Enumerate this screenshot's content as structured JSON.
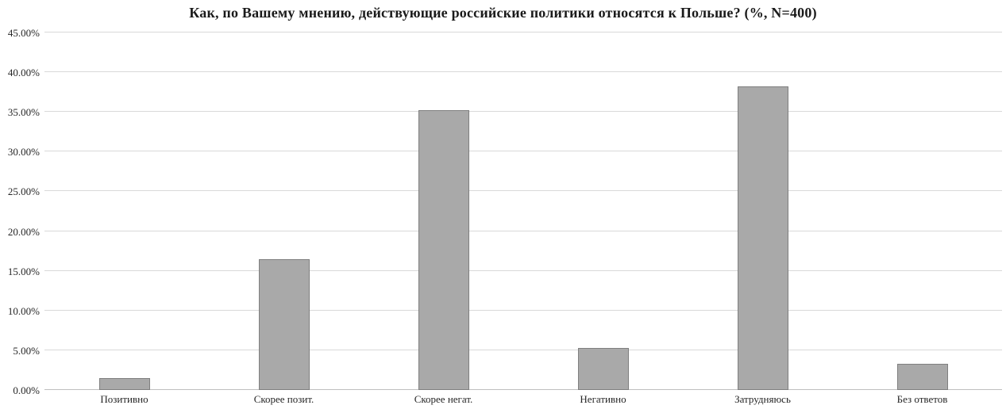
{
  "chart_data": {
    "type": "bar",
    "title": "Как, по Вашему мнению, действующие российские политики относятся к Польше? (%, N=400)",
    "categories": [
      "Позитивно",
      "Скорее позит.",
      "Скорее негат.",
      "Негативно",
      "Затрудняюсь",
      "Без ответов"
    ],
    "values": [
      1.5,
      16.5,
      35.25,
      5.25,
      38.25,
      3.25
    ],
    "ylabel": "",
    "xlabel": "",
    "ylim": [
      0,
      45
    ],
    "ytick_step": 5,
    "ytick_labels": [
      "0.00%",
      "5.00%",
      "10.00%",
      "15.00%",
      "20.00%",
      "25.00%",
      "30.00%",
      "35.00%",
      "40.00%",
      "45.00%"
    ],
    "grid": "horizontal",
    "legend_position": "none",
    "colors": {
      "bar_fill": "#a9a9a9",
      "bar_border": "#7f7f7f",
      "gridline": "#d9d9d9",
      "axis_line": "#bfbfbf",
      "text": "#262626",
      "background": "#ffffff"
    }
  }
}
